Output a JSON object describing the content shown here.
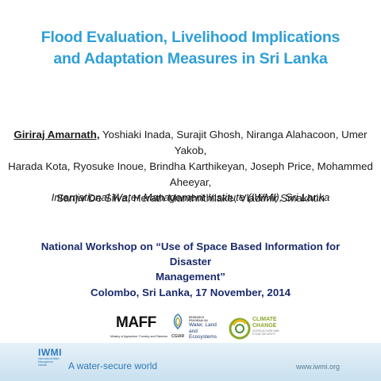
{
  "title": {
    "line1": "Flood Evaluation, Livelihood Implications",
    "line2": "and Adaptation Measures in Sri Lanka"
  },
  "authors": {
    "lead": "Giriraj Amarnath,",
    "line1_rest": " Yoshiaki Inada, Surajit Ghosh, Niranga Alahacoon, Umer Yakob,",
    "line2": "Harada Kota, Ryosuke Inoue, Brindha Karthikeyan, Joseph Price, Mohammed Aheeyar,",
    "line3": "Sanjiv De Silva, Herath Manthrithilake, Vladimir Smakhtin"
  },
  "affiliation": "International Water Management Institute (IWMI), Sri Lanka",
  "workshop": {
    "line1": "National Workshop on “Use of Space Based Information for Disaster",
    "line2": "Management”"
  },
  "venue": "Colombo, Sri Lanka, 17 November, 2014",
  "logos": {
    "maff": {
      "name": "MAFF",
      "subtitle": "Ministry of Agriculture, Forestry and Fisheries"
    },
    "cgiar": {
      "name": "CGIAR",
      "program_line1": "RESEARCH",
      "program_line2": "PROGRAM ON",
      "name_line1": "Water, Land and",
      "name_line2": "Ecosystems"
    },
    "climate": {
      "line1": "CLIMATE",
      "line2": "CHANGE",
      "sub1": "AGRICULTURE AND",
      "sub2": "FOOD SECURITY"
    }
  },
  "footer": {
    "logo": "IWMI",
    "logo_sub": "International Water Management Institute",
    "tagline": "A water-secure world",
    "url": "www.iwmi.org"
  },
  "colors": {
    "title": "#2e9fd8",
    "heading_dark": "#1a2a6c",
    "footer_blue": "#2f79b9",
    "cc_green": "#8aa82c"
  }
}
